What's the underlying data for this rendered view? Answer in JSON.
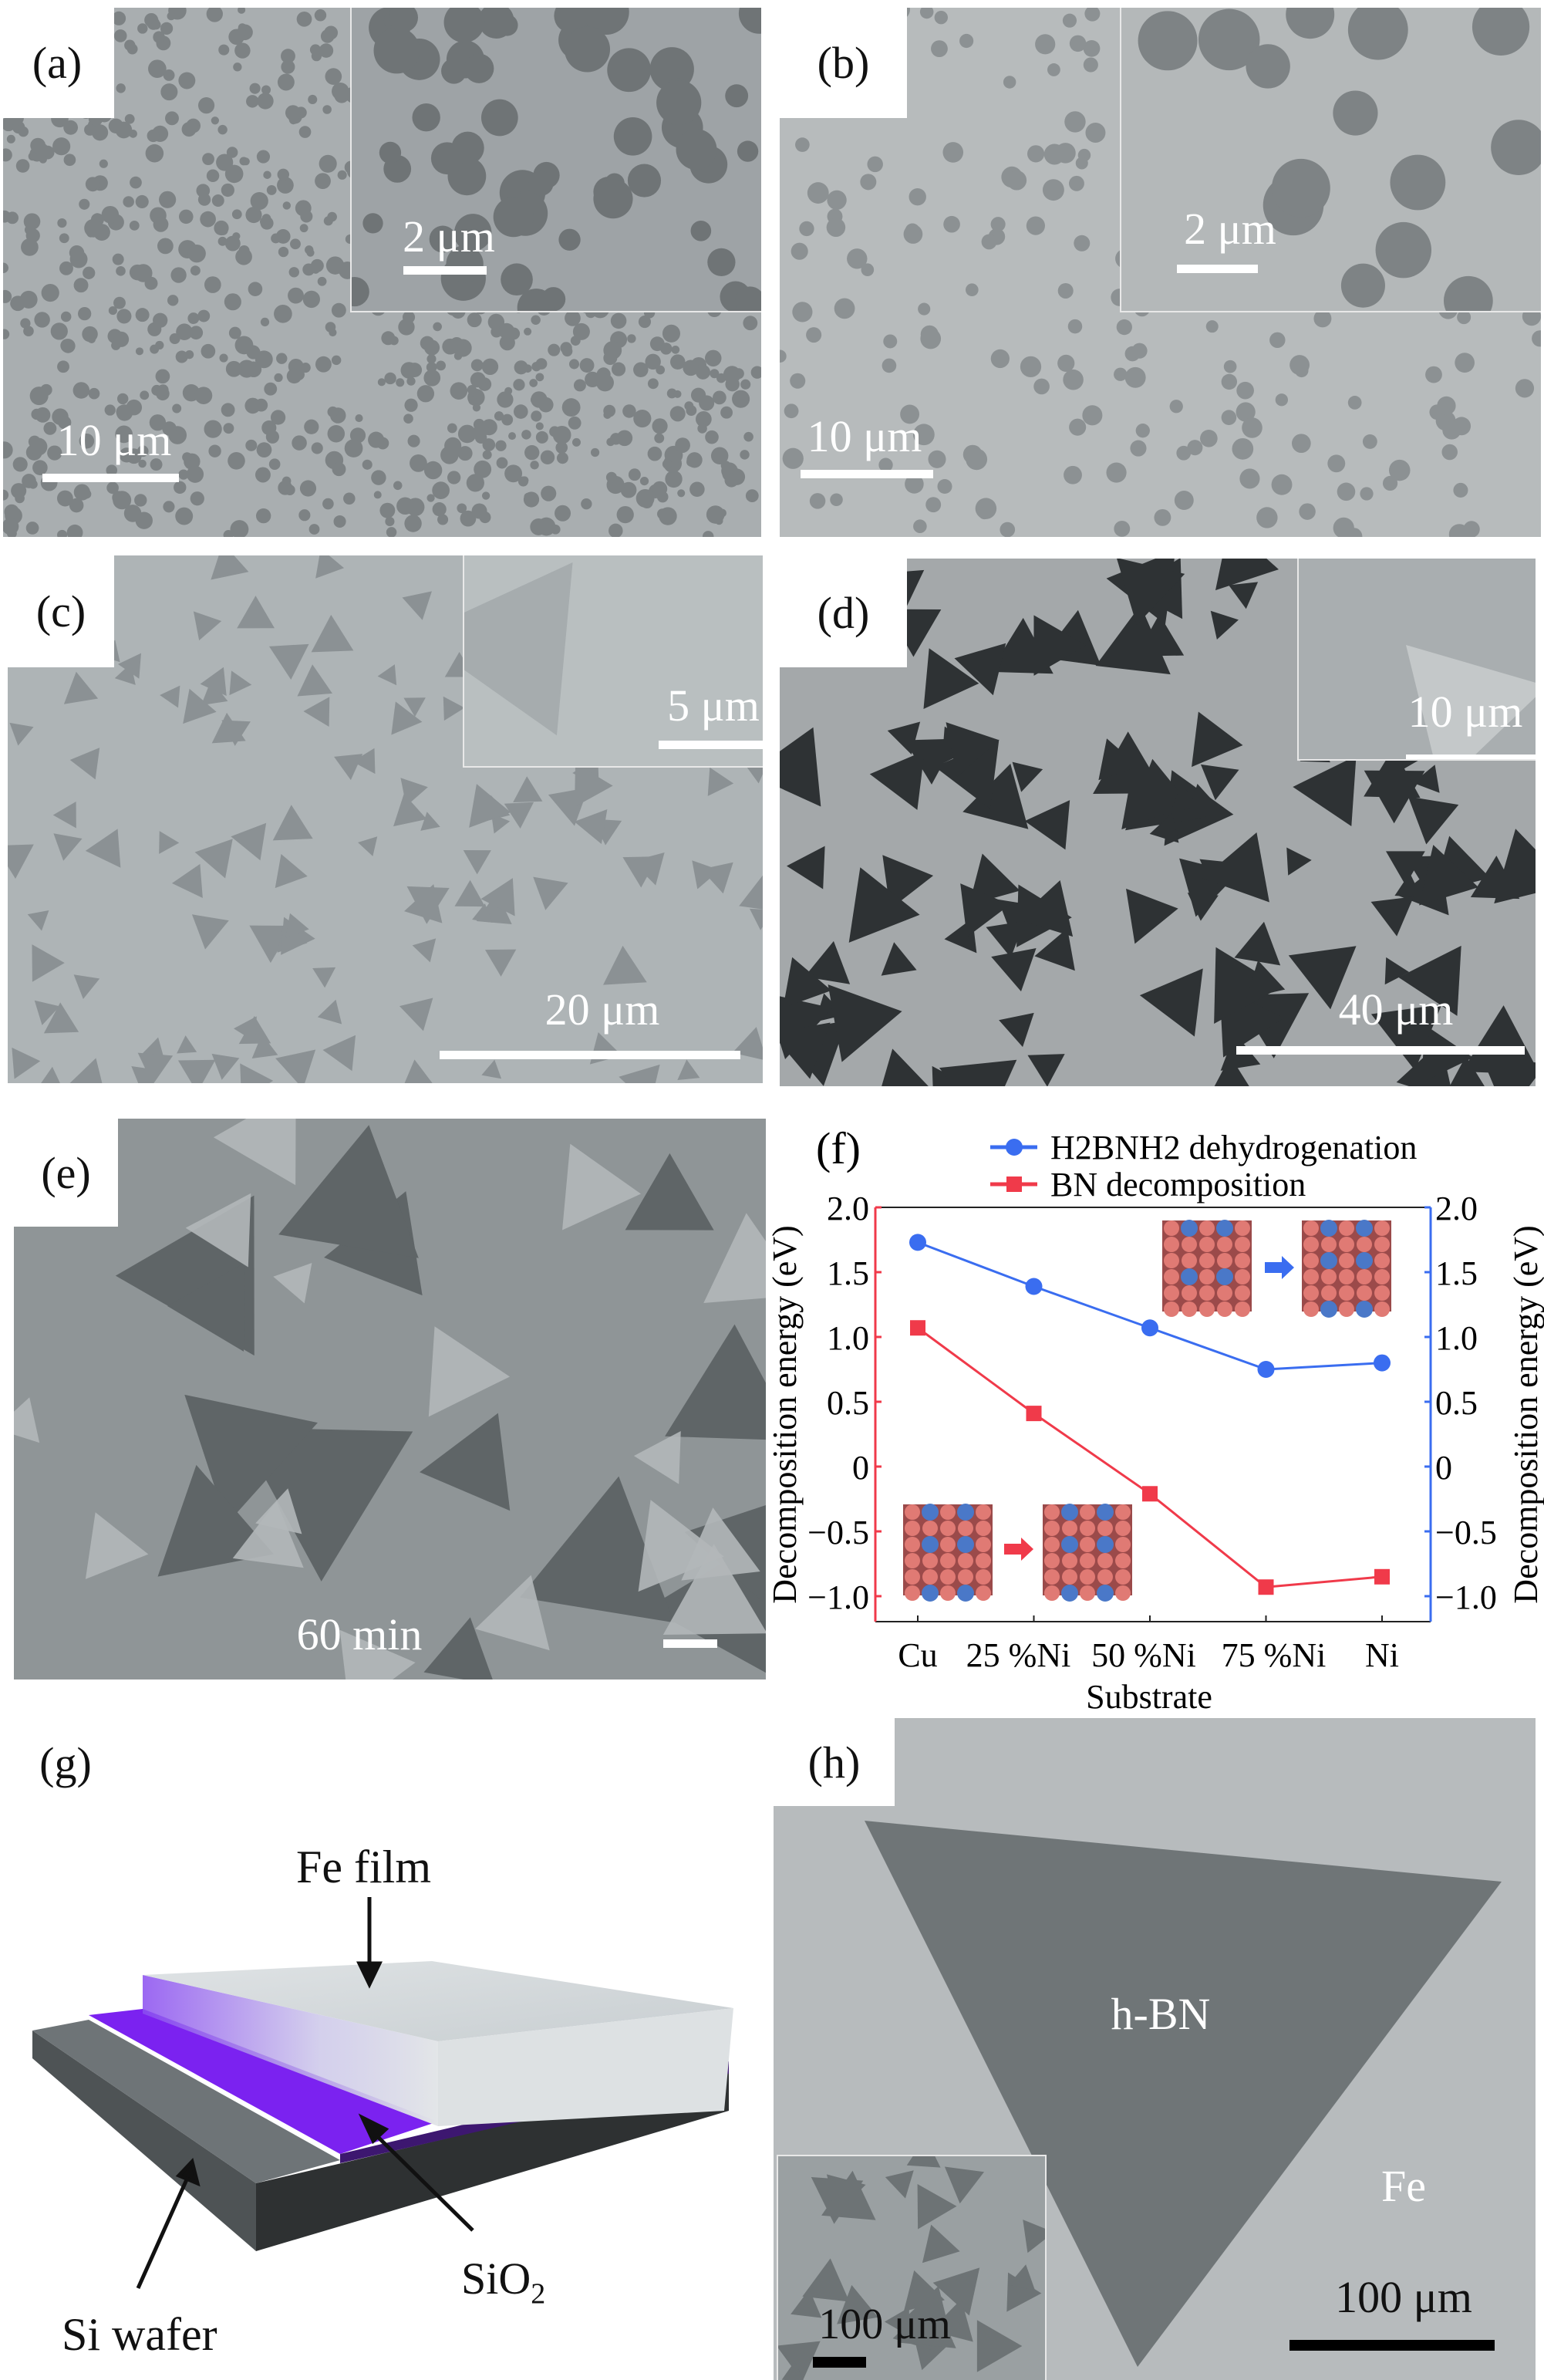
{
  "panels": {
    "a": {
      "label": "(a)",
      "scale_main": "10 μm",
      "scale_inset": "2 μm"
    },
    "b": {
      "label": "(b)",
      "scale_main": "10 μm",
      "scale_inset": "2 μm"
    },
    "c": {
      "label": "(c)",
      "scale_main": "20 μm",
      "scale_inset": "5 μm"
    },
    "d": {
      "label": "(d)",
      "scale_main": "40 μm",
      "scale_inset": "10 μm"
    },
    "e": {
      "label": "(e)",
      "caption": "60 min"
    },
    "f": {
      "label": "(f)"
    },
    "g": {
      "label": "(g)",
      "fe_film": "Fe film",
      "sio2": "SiO",
      "sio2_sub": "2",
      "si_wafer": "Si wafer"
    },
    "h": {
      "label": "(h)",
      "hbn": "h-BN",
      "fe": "Fe",
      "scale_main": "100 μm",
      "scale_inset": "100 μm"
    }
  },
  "chart_data": {
    "type": "line",
    "categories": [
      "Cu",
      "25 %Ni",
      "50 %Ni",
      "75 %Ni",
      "Ni"
    ],
    "xlabel": "Substrate",
    "ylabel_left": "Decomposition energy (eV)",
    "ylabel_right": "Decomposition energy (eV)",
    "ylim": [
      -1.2,
      2.0
    ],
    "yticks": [
      "2.0",
      "1.5",
      "1.0",
      "0.5",
      "0",
      "−0.5",
      "−1.0"
    ],
    "ytick_values": [
      2.0,
      1.5,
      1.0,
      0.5,
      0,
      -0.5,
      -1.0
    ],
    "grid": false,
    "legend_position": "top",
    "series": [
      {
        "name": "H2BNH2 dehydrogenation",
        "color": "#3a6df0",
        "marker": "circle",
        "axis": "right",
        "values": [
          1.73,
          1.39,
          1.07,
          0.75,
          0.8
        ]
      },
      {
        "name": "BN decomposition",
        "color": "#f03a4a",
        "marker": "square",
        "axis": "left",
        "values": [
          1.07,
          0.41,
          -0.21,
          -0.93,
          -0.85
        ]
      }
    ]
  }
}
